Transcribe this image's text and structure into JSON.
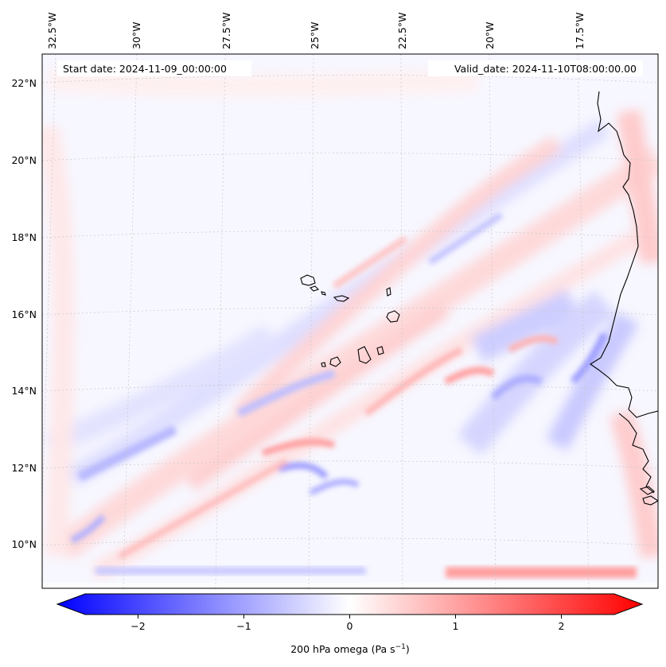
{
  "map": {
    "start_date_label": "Start date: 2024-11-09_00:00:00",
    "valid_date_label": "Valid_date: 2024-11-10T08:00:00.00",
    "lon_labels": [
      "32.5°W",
      "30°W",
      "27.5°W",
      "25°W",
      "22.5°W",
      "20°W",
      "17.5°W"
    ],
    "lat_labels": [
      "22°N",
      "20°N",
      "18°N",
      "16°N",
      "14°N",
      "12°N",
      "10°N"
    ],
    "gridlines": true
  },
  "colorbar": {
    "label_main": "200 hPa omega (Pa s",
    "label_exp": "−1",
    "label_close": ")",
    "ticks": [
      "−2",
      "−1",
      "0",
      "1",
      "2"
    ],
    "tick_values": [
      -2,
      -1,
      0,
      1,
      2
    ],
    "range": [
      -2.5,
      2.5
    ],
    "colormap": "bwr",
    "color_low": "#0000ff",
    "color_mid": "#ffffff",
    "color_high": "#ff0000",
    "extend": "both"
  }
}
